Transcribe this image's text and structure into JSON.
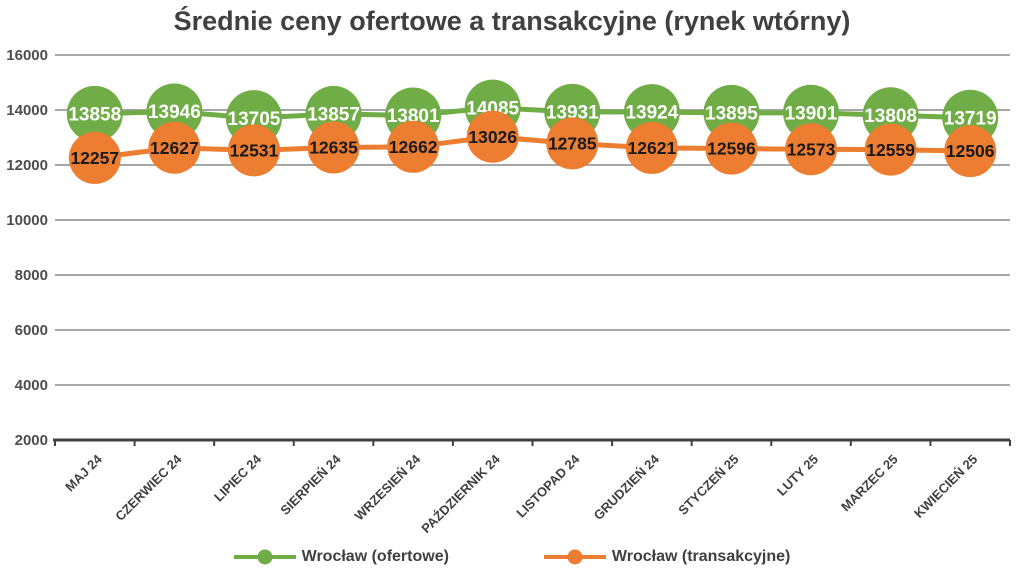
{
  "title": "Średnie ceny ofertowe a transakcyjne (rynek wtórny)",
  "chart_data": {
    "type": "line",
    "categories": [
      "MAJ 24",
      "CZERWIEC 24",
      "LIPIEC 24",
      "SIERPIEŃ 24",
      "WRZESIEŃ 24",
      "PAŹDZIERNIK 24",
      "LISTOPAD 24",
      "GRUDZIEŃ 24",
      "STYCZEŃ 25",
      "LUTY 25",
      "MARZEC 25",
      "KWIECIEŃ 25"
    ],
    "series": [
      {
        "name": "Wrocław (ofertowe)",
        "color": "#70AD47",
        "label_color": "#FFFFFF",
        "values": [
          13858,
          13946,
          13705,
          13857,
          13801,
          14085,
          13931,
          13924,
          13895,
          13901,
          13808,
          13719
        ]
      },
      {
        "name": "Wrocław (transakcyjne)",
        "color": "#ED7D31",
        "label_color": "#1A1A1A",
        "values": [
          12257,
          12627,
          12531,
          12635,
          12662,
          13026,
          12785,
          12621,
          12596,
          12573,
          12559,
          12506
        ]
      }
    ],
    "title": "Średnie ceny ofertowe a transakcyjne (rynek wtórny)",
    "xlabel": "",
    "ylabel": "",
    "ylim": [
      2000,
      16000
    ],
    "yticks": [
      16000,
      14000,
      12000,
      10000,
      8000,
      6000,
      4000,
      2000
    ],
    "grid": true,
    "legend_position": "bottom",
    "gridline_color": "#A6A6A6",
    "axis_color": "#404040",
    "data_labels_shown": true
  }
}
